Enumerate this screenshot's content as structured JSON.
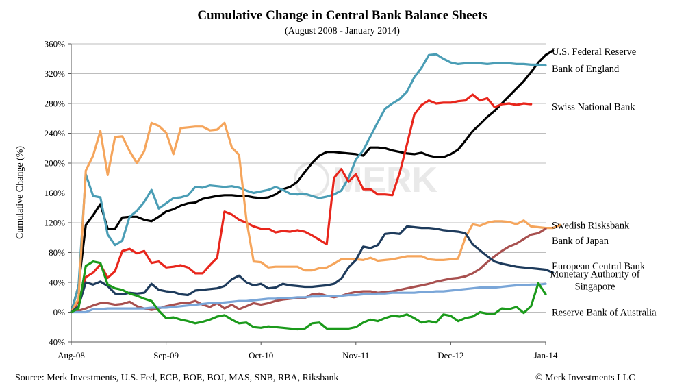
{
  "chart_data": {
    "type": "line",
    "title": "Cumulative Change in Central Bank Balance Sheets",
    "subtitle": "(August 2008 - January 2014)",
    "ylabel": "Cumulative Change (%)",
    "xlabel": "",
    "ylim": [
      -40,
      360
    ],
    "yticks": [
      -40,
      0,
      40,
      80,
      120,
      160,
      200,
      240,
      280,
      320,
      360
    ],
    "ytick_labels": [
      "-40%",
      "0%",
      "40%",
      "80%",
      "120%",
      "160%",
      "200%",
      "240%",
      "280%",
      "320%",
      "360%"
    ],
    "xlim": [
      0,
      65
    ],
    "xticks": [
      0,
      13,
      26,
      39,
      52,
      65
    ],
    "xtick_labels": [
      "Aug-08",
      "Sep-09",
      "Oct-10",
      "Nov-11",
      "Dec-12",
      "Jan-14"
    ],
    "grid": "horizontal",
    "watermark": "MERK",
    "series": [
      {
        "name": "U.S. Federal Reserve",
        "color": "#000000",
        "label_y": 350,
        "values": [
          0,
          35,
          117,
          130,
          145,
          112,
          112,
          127,
          128,
          128,
          124,
          122,
          128,
          135,
          138,
          143,
          146,
          147,
          152,
          154,
          156,
          157,
          157,
          156,
          156,
          154,
          153,
          154,
          158,
          165,
          168,
          175,
          188,
          200,
          210,
          215,
          215,
          214,
          213,
          212,
          210,
          221,
          221,
          220,
          217,
          215,
          213,
          212,
          214,
          210,
          208,
          208,
          212,
          218,
          230,
          243,
          252,
          262,
          270,
          280,
          290,
          300,
          310,
          322,
          335,
          345,
          351
        ]
      },
      {
        "name": "Bank of England",
        "color": "#4a9db5",
        "label_y": 327,
        "values": [
          0,
          35,
          185,
          156,
          154,
          104,
          90,
          96,
          128,
          136,
          148,
          164,
          139,
          146,
          153,
          154,
          157,
          168,
          167,
          170,
          169,
          168,
          169,
          167,
          163,
          160,
          162,
          164,
          168,
          164,
          159,
          158,
          159,
          156,
          153,
          155,
          158,
          163,
          180,
          205,
          217,
          236,
          255,
          273,
          280,
          286,
          296,
          315,
          328,
          345,
          346,
          340,
          335,
          333,
          334,
          334,
          334,
          333,
          334,
          334,
          334,
          333,
          333,
          332,
          332,
          331
        ]
      },
      {
        "name": "Swiss National Bank",
        "color": "#e8261c",
        "label_y": 276,
        "values": [
          0,
          15,
          47,
          53,
          64,
          46,
          55,
          82,
          85,
          79,
          82,
          66,
          68,
          60,
          61,
          63,
          60,
          52,
          52,
          63,
          73,
          135,
          131,
          124,
          120,
          115,
          112,
          112,
          107,
          109,
          108,
          110,
          108,
          103,
          97,
          91,
          180,
          192,
          175,
          185,
          165,
          165,
          158,
          158,
          157,
          187,
          225,
          265,
          278,
          284,
          280,
          281,
          281,
          283,
          284,
          292,
          284,
          287,
          275,
          279,
          280,
          278,
          280,
          279
        ]
      },
      {
        "name": "Swedish Risksbank",
        "color": "#f5a55c",
        "label_y": 117,
        "values": [
          0,
          18,
          190,
          210,
          243,
          184,
          235,
          236,
          216,
          200,
          216,
          254,
          250,
          241,
          212,
          247,
          248,
          249,
          249,
          244,
          245,
          254,
          221,
          211,
          124,
          68,
          67,
          60,
          61,
          61,
          61,
          61,
          56,
          56,
          59,
          60,
          65,
          71,
          71,
          71,
          70,
          73,
          69,
          70,
          71,
          73,
          75,
          75,
          75,
          71,
          70,
          70,
          71,
          72,
          100,
          118,
          116,
          120,
          122,
          122,
          121,
          118,
          123,
          115,
          114,
          113,
          113,
          117
        ]
      },
      {
        "name": "Bank of Japan",
        "color": "#a8504f",
        "label_y": 96,
        "values": [
          0,
          2,
          5,
          9,
          12,
          12,
          10,
          11,
          14,
          8,
          5,
          3,
          5,
          8,
          10,
          12,
          12,
          15,
          10,
          7,
          12,
          5,
          10,
          4,
          8,
          12,
          10,
          12,
          15,
          17,
          18,
          19,
          19,
          24,
          25,
          22,
          20,
          22,
          25,
          27,
          28,
          28,
          26,
          27,
          28,
          30,
          32,
          34,
          36,
          38,
          41,
          43,
          45,
          46,
          48,
          52,
          58,
          67,
          75,
          82,
          88,
          92,
          98,
          104,
          106,
          112
        ]
      },
      {
        "name": "European Central Bank",
        "color": "#1e3b5c",
        "label_y": 62,
        "values": [
          0,
          8,
          40,
          37,
          41,
          35,
          25,
          24,
          26,
          25,
          26,
          38,
          30,
          28,
          27,
          24,
          23,
          29,
          30,
          31,
          32,
          35,
          44,
          49,
          40,
          36,
          38,
          32,
          33,
          38,
          36,
          35,
          34,
          34,
          35,
          36,
          38,
          45,
          60,
          70,
          88,
          86,
          90,
          105,
          106,
          105,
          115,
          114,
          113,
          113,
          112,
          110,
          109,
          108,
          106,
          91,
          83,
          75,
          68,
          65,
          63,
          61,
          60,
          59,
          58,
          57,
          53
        ]
      },
      {
        "name": "Monetary Authority of Singapore",
        "color": "#7aa6d8",
        "label_y": 43,
        "label_lines": [
          "Monetary Authority of",
          "Singapore"
        ],
        "values": [
          0,
          0,
          0,
          4,
          4,
          5,
          5,
          5,
          5,
          5,
          5,
          6,
          6,
          6,
          7,
          8,
          9,
          10,
          11,
          12,
          12,
          13,
          14,
          15,
          15,
          16,
          17,
          18,
          18,
          19,
          19,
          20,
          20,
          21,
          21,
          22,
          22,
          22,
          23,
          23,
          24,
          24,
          25,
          25,
          26,
          26,
          26,
          26,
          27,
          27,
          28,
          28,
          29,
          30,
          31,
          32,
          33,
          33,
          33,
          34,
          35,
          36,
          36,
          37,
          37,
          38
        ]
      },
      {
        "name": "Reserve Bank of Australia",
        "color": "#1b9a1b",
        "label_y": 0,
        "values": [
          0,
          5,
          62,
          68,
          66,
          37,
          32,
          30,
          25,
          22,
          18,
          15,
          2,
          -8,
          -7,
          -10,
          -12,
          -15,
          -13,
          -10,
          -6,
          -4,
          -10,
          -15,
          -14,
          -20,
          -21,
          -19,
          -20,
          -21,
          -22,
          -23,
          -22,
          -15,
          -14,
          -22,
          -22,
          -22,
          -22,
          -20,
          -14,
          -10,
          -12,
          -8,
          -5,
          -6,
          -3,
          -8,
          -14,
          -12,
          -14,
          -3,
          -5,
          -12,
          -8,
          -6,
          0,
          -2,
          -2,
          5,
          4,
          7,
          -1,
          8,
          39,
          24
        ]
      }
    ]
  },
  "footer": {
    "source": "Source: Merk Investments, U.S. Fed, ECB, BOE, BOJ, MAS, SNB, RBA, Riksbank",
    "copyright": "© Merk Investments LLC"
  }
}
